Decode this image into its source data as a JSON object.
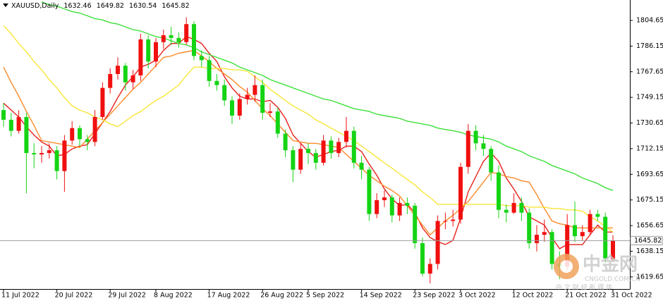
{
  "chart_data": {
    "type": "candlestick",
    "header": "XAUUSD,Daily",
    "categories": [
      "11 Jul 2022",
      null,
      null,
      null,
      null,
      null,
      null,
      "20 Jul 2022",
      null,
      null,
      null,
      null,
      null,
      null,
      "29 Jul 2022",
      null,
      null,
      null,
      null,
      null,
      "8 Aug 2022",
      null,
      null,
      null,
      null,
      null,
      null,
      "17 Aug 2022",
      null,
      null,
      null,
      null,
      null,
      null,
      "26 Aug 2022",
      null,
      null,
      null,
      null,
      null,
      "5 Sep 2022",
      null,
      null,
      null,
      null,
      null,
      null,
      "14 Sep 2022",
      null,
      null,
      null,
      null,
      null,
      null,
      "23 Sep 2022",
      null,
      null,
      null,
      null,
      null,
      "3 Oct 2022",
      null,
      null,
      null,
      null,
      null,
      null,
      "12 Oct 2022",
      null,
      null,
      null,
      null,
      null,
      null,
      "21 Oct 2022",
      null,
      null,
      null,
      null,
      null,
      "31 Oct 2022"
    ],
    "open": [
      1740,
      1733,
      1725,
      1735,
      1709,
      1708,
      1709,
      1711,
      1696,
      1718,
      1727,
      1719,
      1717,
      1735,
      1756,
      1766,
      1772,
      1760,
      1765,
      1791,
      1775,
      1789,
      1794,
      1792,
      1789,
      1802,
      1779,
      1776,
      1761,
      1758,
      1747,
      1736,
      1748,
      1751,
      1758,
      1738,
      1739,
      1723,
      1711,
      1697,
      1712,
      1709,
      1702,
      1718,
      1709,
      1717,
      1725,
      1702,
      1697,
      1665,
      1675,
      1677,
      1664,
      1673,
      1671,
      1644,
      1622,
      1629,
      1660,
      1660,
      1661,
      1699,
      1725,
      1716,
      1712,
      1695,
      1668,
      1666,
      1673,
      1666,
      1644,
      1650,
      1652,
      1629,
      1627,
      1657,
      1649,
      1652,
      1665,
      1663,
      1632.46
    ],
    "high": [
      1745,
      1738,
      1740,
      1738,
      1716,
      1714,
      1716,
      1714,
      1722,
      1732,
      1729,
      1722,
      1740,
      1760,
      1770,
      1778,
      1774,
      1769,
      1795,
      1794,
      1792,
      1798,
      1800,
      1796,
      1807,
      1804,
      1783,
      1779,
      1766,
      1762,
      1750,
      1752,
      1756,
      1765,
      1762,
      1745,
      1742,
      1726,
      1714,
      1716,
      1716,
      1712,
      1722,
      1721,
      1720,
      1735,
      1728,
      1707,
      1699,
      1680,
      1682,
      1679,
      1677,
      1677,
      1673,
      1648,
      1633,
      1664,
      1666,
      1668,
      1702,
      1730,
      1729,
      1722,
      1714,
      1700,
      1672,
      1680,
      1677,
      1669,
      1657,
      1661,
      1654,
      1638,
      1665,
      1674,
      1657,
      1668,
      1668,
      1666,
      1649.82
    ],
    "low": [
      1728,
      1721,
      1723,
      1680,
      1698,
      1702,
      1705,
      1690,
      1681,
      1715,
      1714,
      1711,
      1714,
      1733,
      1752,
      1762,
      1754,
      1755,
      1761,
      1770,
      1771,
      1784,
      1787,
      1785,
      1787,
      1776,
      1771,
      1757,
      1754,
      1743,
      1730,
      1733,
      1744,
      1746,
      1733,
      1735,
      1720,
      1706,
      1688,
      1694,
      1701,
      1697,
      1700,
      1705,
      1706,
      1713,
      1698,
      1690,
      1660,
      1662,
      1670,
      1659,
      1660,
      1665,
      1640,
      1620,
      1615,
      1625,
      1654,
      1656,
      1658,
      1694,
      1711,
      1707,
      1689,
      1662,
      1659,
      1665,
      1660,
      1640,
      1638,
      1645,
      1625,
      1618,
      1624,
      1645,
      1646,
      1650,
      1660,
      1630,
      1630.54
    ],
    "close": [
      1733,
      1725,
      1735,
      1709,
      1708,
      1709,
      1711,
      1696,
      1718,
      1727,
      1719,
      1717,
      1735,
      1756,
      1766,
      1772,
      1760,
      1765,
      1791,
      1775,
      1789,
      1794,
      1792,
      1789,
      1802,
      1779,
      1776,
      1761,
      1758,
      1747,
      1736,
      1748,
      1751,
      1758,
      1738,
      1739,
      1723,
      1711,
      1697,
      1712,
      1709,
      1702,
      1718,
      1709,
      1717,
      1725,
      1702,
      1697,
      1665,
      1675,
      1677,
      1664,
      1673,
      1671,
      1644,
      1622,
      1629,
      1660,
      1660,
      1661,
      1699,
      1725,
      1716,
      1712,
      1695,
      1668,
      1666,
      1673,
      1666,
      1644,
      1650,
      1652,
      1629,
      1627,
      1657,
      1649,
      1652,
      1665,
      1663,
      1633,
      1645.82
    ],
    "up_color": "#f01010",
    "down_color": "#14d414",
    "series": [
      {
        "color": "#e8211c",
        "values": [
          1745,
          1740,
          1735,
          1728,
          1722,
          1717,
          1714,
          1707,
          1708,
          1712,
          1714,
          1715,
          1723,
          1731,
          1739,
          1749,
          1758,
          1764,
          1771,
          1773,
          1776,
          1783,
          1788,
          1788,
          1793,
          1791,
          1788,
          1781,
          1775,
          1764,
          1756,
          1750,
          1748,
          1748,
          1746,
          1747,
          1742,
          1734,
          1722,
          1716,
          1710,
          1706,
          1708,
          1710,
          1711,
          1714,
          1714,
          1710,
          1701,
          1693,
          1683,
          1676,
          1671,
          1672,
          1666,
          1655,
          1648,
          1645,
          1643,
          1646,
          1662,
          1681,
          1692,
          1703,
          1709,
          1703,
          1691,
          1683,
          1674,
          1663,
          1660,
          1657,
          1648,
          1640,
          1643,
          1643,
          1643,
          1650,
          1657,
          1652,
          1652
        ]
      },
      {
        "color": "#fb8a2a",
        "values": [
          1771,
          1760,
          1750,
          1739,
          1729,
          1718,
          1717,
          1716,
          1715,
          1714,
          1713,
          1719,
          1725,
          1731,
          1737,
          1743,
          1749,
          1755,
          1760,
          1766,
          1772,
          1778,
          1779,
          1781,
          1782,
          1783,
          1779,
          1775,
          1770,
          1766,
          1762,
          1757,
          1753,
          1747,
          1741,
          1736,
          1730,
          1724,
          1718,
          1717,
          1716,
          1716,
          1715,
          1714,
          1713,
          1708,
          1703,
          1698,
          1693,
          1689,
          1685,
          1682,
          1678,
          1671,
          1664,
          1657,
          1650,
          1655,
          1660,
          1664,
          1669,
          1674,
          1681,
          1688,
          1695,
          1694,
          1692,
          1691,
          1689,
          1688,
          1679,
          1669,
          1660,
          1658,
          1657,
          1655,
          1655,
          1655,
          1655,
          1655,
          1655
        ]
      },
      {
        "color": "#f7e63a",
        "values": [
          1801,
          1795,
          1788,
          1782,
          1775,
          1769,
          1762,
          1756,
          1749,
          1743,
          1740,
          1738,
          1735,
          1733,
          1730,
          1728,
          1732,
          1736,
          1739,
          1743,
          1747,
          1750,
          1754,
          1758,
          1765,
          1771,
          1771,
          1770,
          1770,
          1770,
          1769,
          1769,
          1768,
          1764,
          1760,
          1755,
          1751,
          1747,
          1743,
          1740,
          1737,
          1733,
          1730,
          1727,
          1724,
          1721,
          1718,
          1714,
          1710,
          1706,
          1702,
          1698,
          1694,
          1690,
          1686,
          1681,
          1677,
          1672,
          1672,
          1672,
          1672,
          1672,
          1672,
          1672,
          1672,
          1672,
          1671,
          1671,
          1671,
          1670,
          1670,
          1670,
          1669,
          1669,
          1668,
          1668,
          1667,
          1663,
          1660,
          1656,
          1652
        ]
      },
      {
        "color": "#3ee03a",
        "values": [
          null,
          null,
          null,
          null,
          null,
          1818,
          1816,
          1815,
          1813,
          1811,
          1810,
          1808,
          1806,
          1805,
          1803,
          1802,
          1800,
          1798,
          1797,
          1795,
          1793,
          1792,
          1790,
          1788,
          1787,
          1785,
          1782,
          1780,
          1778,
          1776,
          1774,
          1771,
          1769,
          1767,
          1765,
          1762,
          1760,
          1758,
          1756,
          1754,
          1752,
          1750,
          1748,
          1747,
          1745,
          1743,
          1741,
          1740,
          1739,
          1737,
          1736,
          1735,
          1734,
          1732,
          1731,
          1730,
          1729,
          1727,
          1726,
          1725,
          1724,
          1722,
          1721,
          1720,
          1719,
          1717,
          1714,
          1712,
          1710,
          1707,
          1705,
          1703,
          1700,
          1698,
          1696,
          1694,
          1691,
          1689,
          1687,
          1684,
          1682
        ]
      }
    ],
    "ylim": [
      1610.9,
      1819.4
    ],
    "yticks": [
      1804.65,
      1786.15,
      1767.65,
      1749.15,
      1730.65,
      1712.15,
      1693.65,
      1675.15,
      1656.65,
      1638.15,
      1619.65
    ],
    "last_price_line": true
  },
  "watermark": {
    "title": "中金网",
    "domain": "CNGOLD.COM.CN",
    "tagline": "中 文 财 经 新 媒 体"
  }
}
